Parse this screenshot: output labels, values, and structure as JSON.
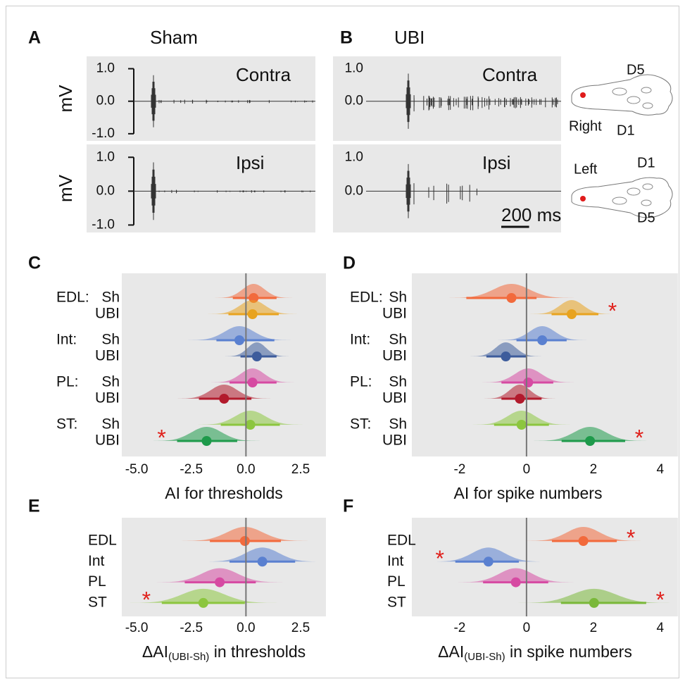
{
  "chart_data": [
    {
      "type": "trace",
      "panel": "A",
      "title": "Sham",
      "ylabel": "mV",
      "ylim": [
        -1.22,
        1.38
      ],
      "yticks": [
        {
          "value": 1,
          "label": "1.0"
        },
        {
          "value": 0,
          "label": "0.0"
        },
        {
          "value": -1,
          "label": "-1.0"
        }
      ],
      "xlim": [
        0,
        1400
      ],
      "traces": [
        {
          "label": "Contra"
        },
        {
          "label": "Ipsi"
        }
      ]
    },
    {
      "type": "trace",
      "panel": "B",
      "title": "UBI",
      "ylim": [
        -1.22,
        1.38
      ],
      "yticks": [
        {
          "value": 1,
          "label": "1.0"
        },
        {
          "value": 0,
          "label": "0.0"
        }
      ],
      "xlim": [
        0,
        1400
      ],
      "traces": [
        {
          "label": "Contra"
        },
        {
          "label": "Ipsi"
        }
      ],
      "scalebar": {
        "value": 200,
        "label": "200 ms"
      }
    },
    {
      "type": "forest",
      "panel": "C",
      "xlabel": "AI for thresholds",
      "xlim": [
        -5.68,
        3.66
      ],
      "xticks": [
        {
          "value": -5,
          "label": "-5.0"
        },
        {
          "value": -2.5,
          "label": "-2.5"
        },
        {
          "value": 0,
          "label": "0.0"
        },
        {
          "value": 2.5,
          "label": "2.5"
        }
      ],
      "reference_line": 0,
      "rows": [
        {
          "group": "EDL:",
          "label": "Sh",
          "color": "#f26a3c",
          "value": 0.35,
          "interval": [
            -0.6,
            1.4
          ]
        },
        {
          "label": "UBI",
          "color": "#e8a31f",
          "value": 0.3,
          "interval": [
            -0.8,
            1.5
          ]
        },
        {
          "group": "Int:",
          "label": "Sh",
          "color": "#5a80d0",
          "value": -0.3,
          "interval": [
            -1.35,
            1.3
          ]
        },
        {
          "label": "UBI",
          "color": "#3d5c9c",
          "value": 0.5,
          "interval": [
            -0.25,
            1.4
          ]
        },
        {
          "group": "PL:",
          "label": "Sh",
          "color": "#d64aa2",
          "value": 0.3,
          "interval": [
            -0.75,
            1.4
          ]
        },
        {
          "label": "UBI",
          "color": "#b21a2c",
          "value": -1.0,
          "interval": [
            -2.15,
            0.25
          ]
        },
        {
          "group": "ST:",
          "label": "Sh",
          "color": "#8cc63f",
          "value": 0.2,
          "interval": [
            -1.15,
            1.55
          ]
        },
        {
          "label": "UBI",
          "color": "#1e9a4b",
          "value": -1.8,
          "interval": [
            -3.15,
            -0.4
          ],
          "annotation": "*"
        }
      ]
    },
    {
      "type": "forest",
      "panel": "D",
      "xlabel": "AI for spike numbers",
      "xlim": [
        -3.43,
        4.53
      ],
      "xticks": [
        -2,
        0,
        2,
        4
      ],
      "reference_line": 0,
      "rows": [
        {
          "group": "EDL:",
          "label": "Sh",
          "color": "#f26a3c",
          "value": -0.45,
          "interval": [
            -1.8,
            0.3
          ]
        },
        {
          "label": "UBI",
          "color": "#e8a31f",
          "value": 1.35,
          "interval": [
            0.75,
            2.15
          ],
          "annotation": "*"
        },
        {
          "group": "Int:",
          "label": "Sh",
          "color": "#5a80d0",
          "value": 0.47,
          "interval": [
            -0.3,
            1.2
          ]
        },
        {
          "label": "UBI",
          "color": "#3d5c9c",
          "value": -0.62,
          "interval": [
            -1.2,
            0
          ]
        },
        {
          "group": "PL:",
          "label": "Sh",
          "color": "#d64aa2",
          "value": 0.05,
          "interval": [
            -0.75,
            0.8
          ]
        },
        {
          "label": "UBI",
          "color": "#b21a2c",
          "value": -0.2,
          "interval": [
            -0.75,
            0.45
          ]
        },
        {
          "group": "ST:",
          "label": "Sh",
          "color": "#8cc63f",
          "value": -0.15,
          "interval": [
            -0.97,
            0.67
          ]
        },
        {
          "label": "UBI",
          "color": "#1e9a4b",
          "value": 1.9,
          "interval": [
            1.05,
            2.95
          ],
          "annotation": "*"
        }
      ]
    },
    {
      "type": "forest",
      "panel": "E",
      "xlabel": {
        "main": "ΔAI",
        "sub": "(UBI-Sh)",
        "rest": " in thresholds"
      },
      "xlim": [
        -5.68,
        3.66
      ],
      "xticks": [
        {
          "value": -5,
          "label": "-5.0"
        },
        {
          "value": -2.5,
          "label": "-2.5"
        },
        {
          "value": 0,
          "label": "0.0"
        },
        {
          "value": 2.5,
          "label": "2.5"
        }
      ],
      "reference_line": 0,
      "rows": [
        {
          "label": "EDL",
          "color": "#f26a3c",
          "value": -0.05,
          "interval": [
            -1.65,
            1.6
          ]
        },
        {
          "label": "Int",
          "color": "#5a80d0",
          "value": 0.75,
          "interval": [
            -0.75,
            2.25
          ]
        },
        {
          "label": "PL",
          "color": "#d64aa2",
          "value": -1.2,
          "interval": [
            -2.8,
            0.45
          ]
        },
        {
          "label": "ST",
          "color": "#8cc63f",
          "value": -1.95,
          "interval": [
            -3.85,
            -0.05
          ],
          "annotation": "*"
        }
      ]
    },
    {
      "type": "forest",
      "panel": "F",
      "xlabel": {
        "main": "ΔAI",
        "sub": "(UBI-Sh)",
        "rest": " in spike numbers"
      },
      "xlim": [
        -3.43,
        4.53
      ],
      "xticks": [
        -2,
        0,
        2,
        4
      ],
      "reference_line": 0,
      "rows": [
        {
          "label": "EDL",
          "color": "#f26a3c",
          "value": 1.7,
          "interval": [
            0.76,
            2.7
          ],
          "annotation": "*"
        },
        {
          "label": "Int",
          "color": "#5a80d0",
          "value": -1.14,
          "interval": [
            -2.13,
            -0.23
          ],
          "annotation": "*"
        },
        {
          "label": "PL",
          "color": "#d64aa2",
          "value": -0.32,
          "interval": [
            -1.3,
            0.65
          ]
        },
        {
          "label": "ST",
          "color": "#7ab83a",
          "value": 2.02,
          "interval": [
            1.03,
            3.58
          ],
          "annotation": "*"
        }
      ]
    }
  ],
  "diagram": {
    "paws": [
      {
        "side": "Right",
        "digits": [
          "D5",
          "D1"
        ]
      },
      {
        "side": "Left",
        "digits": [
          "D1",
          "D5"
        ]
      }
    ]
  }
}
